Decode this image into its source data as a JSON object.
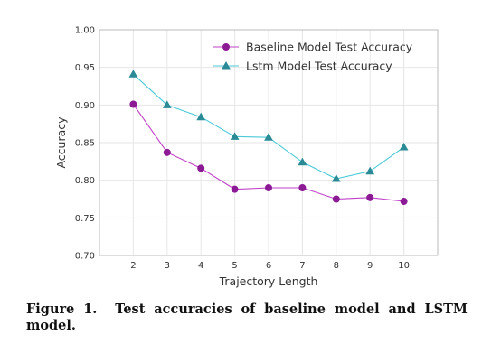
{
  "chart_data": {
    "type": "line",
    "xlabel": "Trajectory Length",
    "ylabel": "Accuracy",
    "x": [
      2,
      3,
      4,
      5,
      6,
      7,
      8,
      9,
      10
    ],
    "xlim": [
      1,
      11
    ],
    "ylim": [
      0.7,
      1.0
    ],
    "x_ticks": [
      "2",
      "3",
      "4",
      "5",
      "6",
      "7",
      "8",
      "9",
      "10"
    ],
    "y_ticks": [
      "0.70",
      "0.75",
      "0.80",
      "0.85",
      "0.90",
      "0.95",
      "1.00"
    ],
    "grid": true,
    "legend_position": "top-right",
    "series": [
      {
        "name": "Baseline Model Test Accuracy",
        "values": [
          0.901,
          0.837,
          0.816,
          0.788,
          0.79,
          0.79,
          0.775,
          0.777,
          0.772
        ],
        "color": "#c040c8",
        "marker": "circle",
        "marker_color": "#8b1a94"
      },
      {
        "name": "Lstm Model Test Accuracy",
        "values": [
          0.941,
          0.9,
          0.884,
          0.858,
          0.857,
          0.824,
          0.802,
          0.812,
          0.844
        ],
        "color": "#4ccad8",
        "marker": "triangle",
        "marker_color": "#2a8a96"
      }
    ]
  },
  "caption": {
    "label": "Figure 1.",
    "text": "Test accuracies of baseline model and LSTM model."
  }
}
